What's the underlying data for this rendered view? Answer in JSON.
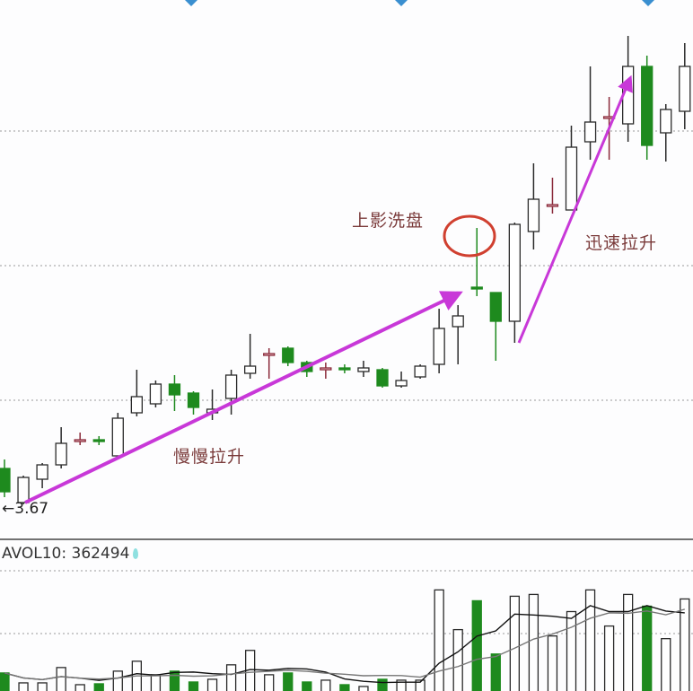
{
  "chart_data": [
    {
      "type": "candlestick",
      "title": "",
      "ylim": [
        3.48,
        6.48
      ],
      "grid": true,
      "gridlines": [
        4.25,
        5.0,
        5.75
      ],
      "colors": {
        "up": "#ffffff",
        "up_stroke": "#2a2a2a",
        "down": "#1e8a1e",
        "arrow": "#c838d8",
        "circle": "#d04030"
      },
      "ohlc": [
        [
          3.87,
          3.74,
          3.92,
          3.71
        ],
        [
          3.68,
          3.82,
          3.83,
          3.67
        ],
        [
          3.81,
          3.89,
          3.9,
          3.76
        ],
        [
          3.89,
          4.01,
          4.1,
          3.87
        ],
        [
          4.02,
          4.03,
          4.07,
          4.0
        ],
        [
          4.03,
          4.02,
          4.05,
          4.0
        ],
        [
          3.94,
          4.15,
          4.18,
          3.94
        ],
        [
          4.18,
          4.27,
          4.42,
          4.16
        ],
        [
          4.23,
          4.34,
          4.36,
          4.21
        ],
        [
          4.34,
          4.28,
          4.39,
          4.19
        ],
        [
          4.29,
          4.21,
          4.3,
          4.17
        ],
        [
          4.18,
          4.2,
          4.31,
          4.14
        ],
        [
          4.26,
          4.39,
          4.42,
          4.17
        ],
        [
          4.4,
          4.44,
          4.62,
          4.37
        ],
        [
          4.5,
          4.51,
          4.54,
          4.37
        ],
        [
          4.54,
          4.46,
          4.55,
          4.44
        ],
        [
          4.46,
          4.41,
          4.47,
          4.38
        ],
        [
          4.42,
          4.43,
          4.46,
          4.37
        ],
        [
          4.43,
          4.42,
          4.45,
          4.4
        ],
        [
          4.41,
          4.43,
          4.47,
          4.38
        ],
        [
          4.42,
          4.33,
          4.43,
          4.32
        ],
        [
          4.33,
          4.36,
          4.41,
          4.32
        ],
        [
          4.38,
          4.44,
          4.45,
          4.37
        ],
        [
          4.45,
          4.65,
          4.76,
          4.4
        ],
        [
          4.66,
          4.72,
          4.78,
          4.45
        ],
        [
          4.88,
          4.87,
          5.21,
          4.83
        ],
        [
          4.85,
          4.69,
          4.85,
          4.47
        ],
        [
          4.69,
          5.23,
          5.24,
          4.57
        ],
        [
          5.19,
          5.37,
          5.57,
          5.09
        ],
        [
          5.33,
          5.34,
          5.49,
          5.29
        ],
        [
          5.31,
          5.66,
          5.78,
          5.31
        ],
        [
          5.69,
          5.8,
          6.11,
          5.59
        ],
        [
          5.82,
          5.83,
          5.94,
          5.59
        ],
        [
          5.79,
          6.11,
          6.28,
          5.69
        ],
        [
          6.11,
          5.67,
          6.17,
          5.59
        ],
        [
          5.74,
          5.87,
          5.9,
          5.58
        ],
        [
          5.86,
          6.11,
          6.24,
          5.76
        ]
      ],
      "low_label": "3.67",
      "annotations": {
        "washout": "上影洗盘",
        "fast_rise": "迅速拉升",
        "slow_rise": "慢慢拉升"
      }
    },
    {
      "type": "bar",
      "title": "",
      "indicator_label": "AVOL10:",
      "indicator_value": "362494",
      "ylim": [
        0,
        710000
      ],
      "grid": true,
      "volume": [
        84000,
        37800,
        37800,
        109200,
        29400,
        33600,
        92400,
        138600,
        75600,
        92400,
        42000,
        54600,
        121800,
        189000,
        75600,
        84000,
        42000,
        50400,
        29400,
        21000,
        54600,
        50400,
        50400,
        470400,
        285600,
        420000,
        172200,
        441000,
        449400,
        256200,
        369600,
        470400,
        302400,
        449400,
        394800,
        243600,
        428400
      ],
      "colors": {
        "ma_short": "#111111",
        "ma_long": "#777777",
        "indicator_icon": "#8fe0e0"
      }
    }
  ]
}
